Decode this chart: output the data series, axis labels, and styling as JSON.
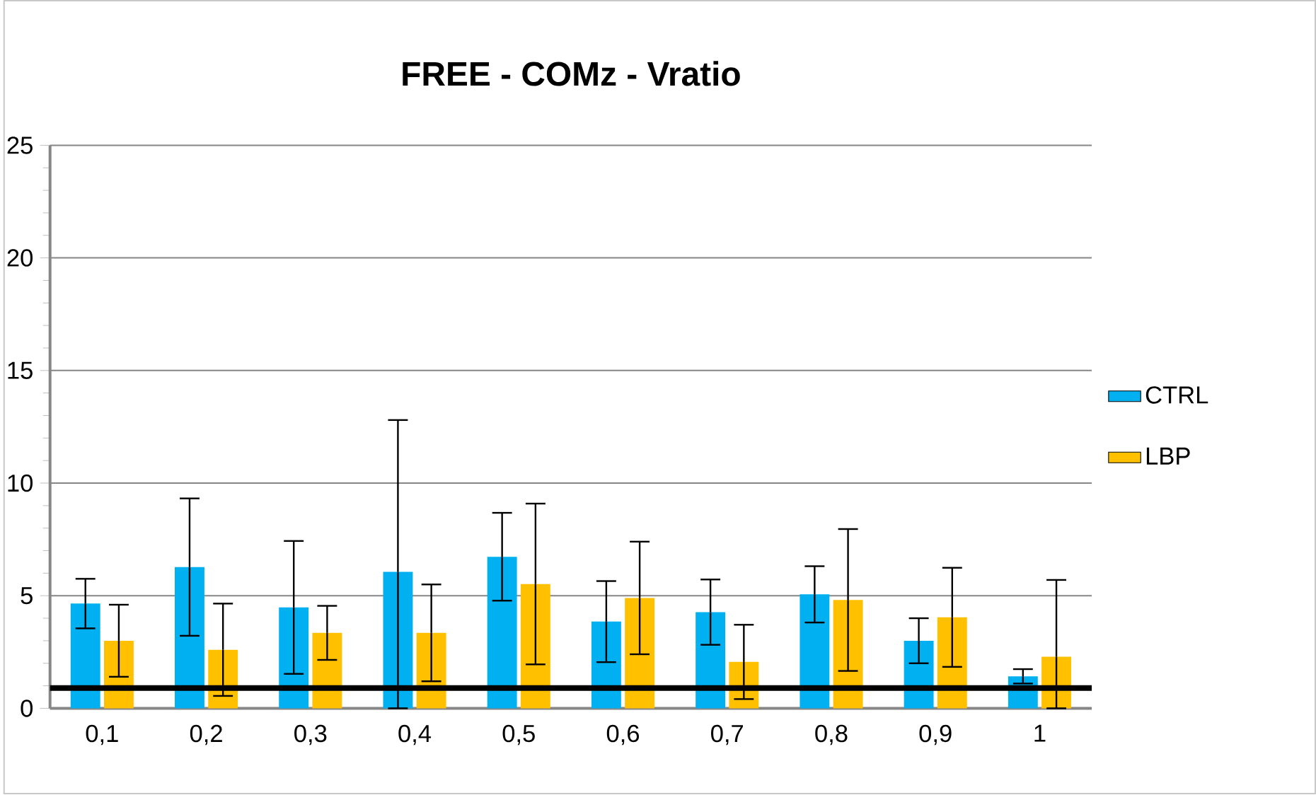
{
  "chart_data": {
    "type": "bar",
    "title": "FREE - COMz - Vratio",
    "categories": [
      "0,1",
      "0,2",
      "0,3",
      "0,4",
      "0,5",
      "0,6",
      "0,7",
      "0,8",
      "0,9",
      "1"
    ],
    "series": [
      {
        "name": "CTRL",
        "color": "#00b0f0",
        "values": [
          4.65,
          6.27,
          4.48,
          6.06,
          6.73,
          3.85,
          4.27,
          5.06,
          3.0,
          1.42
        ],
        "errors": [
          1.1,
          3.05,
          2.95,
          [
            0,
            12.8
          ],
          1.95,
          1.8,
          1.45,
          1.25,
          1.0,
          0.32
        ]
      },
      {
        "name": "LBP",
        "color": "#ffc000",
        "values": [
          3.0,
          2.6,
          3.35,
          3.35,
          5.52,
          4.9,
          2.06,
          4.81,
          4.04,
          2.29
        ],
        "errors": [
          1.6,
          2.05,
          1.2,
          2.15,
          3.57,
          2.5,
          1.65,
          3.15,
          2.2,
          [
            0,
            5.7
          ]
        ]
      }
    ],
    "ylim": [
      0,
      25
    ],
    "yticks": [
      0,
      5,
      10,
      15,
      20,
      25
    ],
    "grid": "y",
    "legend": "right",
    "ref_lines": [
      {
        "axis": "y",
        "value": 0.9,
        "color": "#000000"
      }
    ]
  }
}
